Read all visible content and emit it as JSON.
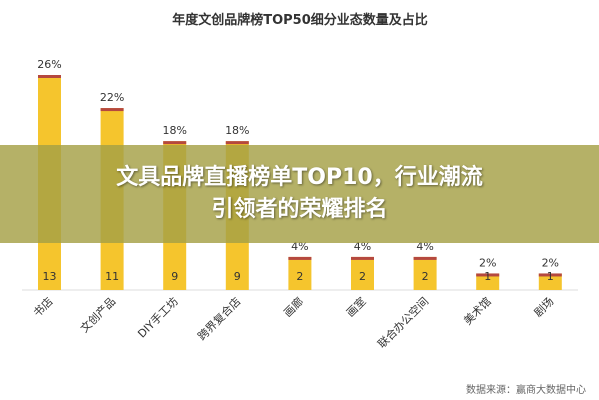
{
  "chart_data": {
    "type": "bar",
    "title": "年度文创品牌榜TOP50细分业态数量及占比",
    "categories": [
      "书店",
      "文创产品",
      "DIY手工坊",
      "跨界复合店",
      "画廊",
      "画室",
      "联合办公空间",
      "美术馆",
      "剧场"
    ],
    "values": [
      13,
      11,
      9,
      9,
      2,
      2,
      2,
      1,
      1
    ],
    "percent_labels": [
      "26%",
      "22%",
      "18%",
      "18%",
      "4%",
      "4%",
      "4%",
      "2%",
      "2%"
    ],
    "ylim": [
      0,
      26
    ],
    "bar_color": "#F5C52D",
    "bar_cap_color": "#B5483F",
    "grid": false,
    "source": "数据来源：赢商大数据中心"
  },
  "overlay": {
    "headline_line1": "文具品牌直播榜单TOP10，行业潮流",
    "headline_line2": "引领者的荣耀排名"
  }
}
